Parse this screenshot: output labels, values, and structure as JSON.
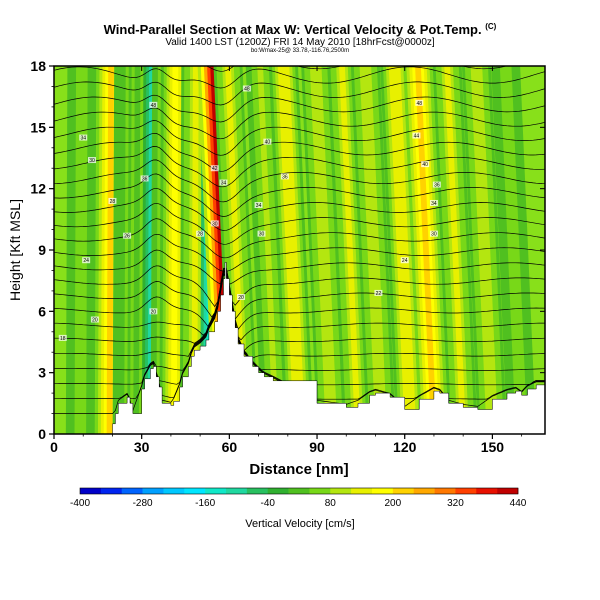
{
  "header": {
    "title": "Wind-Parallel Section at Max W: Vertical Velocity & Pot.Temp.",
    "title_mark": "(C)",
    "subtitle": "Valid 1400 LST (1200Z) FRI 14 May 2010 [18hrFcst@0000z]",
    "subsubtitle": "bo:Wmax-25@ 33.78,-116.76,2500m"
  },
  "colors": {
    "terrain": "#ffffff",
    "contour": "#000000",
    "background_field": "#88e01a"
  },
  "chart_data": {
    "type": "heatmap",
    "xlabel": "Distance [nm]",
    "ylabel": "Height [Kft MSL]",
    "xlim": [
      0,
      168
    ],
    "ylim": [
      0,
      18
    ],
    "x_ticks": [
      0,
      30,
      60,
      90,
      120,
      150
    ],
    "y_ticks": [
      0,
      3,
      6,
      9,
      12,
      15,
      18
    ],
    "colorbar": {
      "label": "Vertical Velocity [cm/s]",
      "tick_labels": [
        -400,
        -280,
        -160,
        -40,
        80,
        200,
        320,
        440
      ],
      "min": -400,
      "max": 440,
      "colors": [
        "#0000c8",
        "#0024f0",
        "#0064ff",
        "#00a0ff",
        "#00c8ff",
        "#00e6ff",
        "#10e8c8",
        "#20d8a0",
        "#28c060",
        "#30b030",
        "#50c020",
        "#78d818",
        "#b4e610",
        "#e8f000",
        "#ffff00",
        "#ffd200",
        "#ffa800",
        "#ff7800",
        "#ff4000",
        "#e81000",
        "#c00000"
      ]
    },
    "terrain_profile": {
      "x": [
        0,
        18,
        20,
        21,
        22,
        25,
        26,
        27,
        30,
        31,
        33,
        34,
        35,
        36,
        37,
        40,
        41,
        43,
        44,
        46,
        47,
        48,
        50,
        52,
        53,
        55,
        56,
        57,
        58,
        58.5,
        59,
        60,
        61,
        62,
        63,
        65,
        68,
        70,
        72,
        75,
        90,
        100,
        104,
        108,
        110,
        115,
        120,
        125,
        130,
        132,
        135,
        140,
        145,
        150,
        155,
        158,
        160,
        162,
        165,
        168
      ],
      "y": [
        0,
        0,
        0.5,
        1.0,
        1.5,
        1.8,
        1.5,
        1.0,
        2.2,
        2.7,
        3.2,
        3.3,
        2.8,
        2.3,
        1.5,
        1.4,
        1.6,
        2.3,
        2.8,
        3.3,
        3.8,
        4.1,
        4.3,
        4.6,
        5.0,
        5.5,
        6.0,
        6.8,
        7.6,
        8.4,
        7.6,
        6.8,
        6.0,
        5.2,
        4.4,
        3.8,
        3.3,
        3.0,
        2.8,
        2.6,
        1.5,
        1.3,
        1.5,
        1.9,
        2.0,
        1.8,
        1.2,
        1.7,
        2.1,
        2.0,
        1.5,
        1.3,
        1.2,
        1.7,
        2.0,
        2.1,
        1.9,
        2.2,
        2.4,
        2.4
      ]
    },
    "vertical_velocity_bands": [
      {
        "x_center": 9,
        "peak": 60
      },
      {
        "x_center": 19,
        "peak": 200
      },
      {
        "x_center": 25,
        "peak": 40
      },
      {
        "x_center": 30,
        "peak": 190
      },
      {
        "x_center": 32,
        "peak": 90
      },
      {
        "x_center": 35,
        "peak": -160
      },
      {
        "x_center": 38,
        "peak": 80
      },
      {
        "x_center": 41,
        "peak": 180
      },
      {
        "x_center": 48,
        "peak": 130
      },
      {
        "x_center": 55,
        "peak": -220
      },
      {
        "x_center": 60,
        "peak": 440
      },
      {
        "x_center": 65,
        "peak": 120
      },
      {
        "x_center": 76,
        "peak": 90
      },
      {
        "x_center": 84,
        "peak": 150
      },
      {
        "x_center": 95,
        "peak": 100
      },
      {
        "x_center": 104,
        "peak": 130
      },
      {
        "x_center": 112,
        "peak": 110
      },
      {
        "x_center": 122,
        "peak": 150
      },
      {
        "x_center": 130,
        "peak": 200
      },
      {
        "x_center": 140,
        "peak": 120
      },
      {
        "x_center": 150,
        "peak": 100
      },
      {
        "x_center": 160,
        "peak": 60
      }
    ],
    "potential_temperature_labels": [
      {
        "x": 10,
        "y": 14.5,
        "text": "34"
      },
      {
        "x": 13,
        "y": 13.4,
        "text": "30"
      },
      {
        "x": 20,
        "y": 11.4,
        "text": "28"
      },
      {
        "x": 25,
        "y": 9.7,
        "text": "26"
      },
      {
        "x": 11,
        "y": 8.5,
        "text": "24"
      },
      {
        "x": 14,
        "y": 5.6,
        "text": "20"
      },
      {
        "x": 3,
        "y": 4.7,
        "text": "18"
      },
      {
        "x": 34,
        "y": 16.1,
        "text": "48"
      },
      {
        "x": 31,
        "y": 12.5,
        "text": "36"
      },
      {
        "x": 50,
        "y": 9.8,
        "text": "28"
      },
      {
        "x": 58,
        "y": 12.3,
        "text": "34"
      },
      {
        "x": 55,
        "y": 10.3,
        "text": "30"
      },
      {
        "x": 55,
        "y": 13.0,
        "text": "42"
      },
      {
        "x": 34,
        "y": 6.0,
        "text": "20"
      },
      {
        "x": 66,
        "y": 16.9,
        "text": "48"
      },
      {
        "x": 73,
        "y": 14.3,
        "text": "40"
      },
      {
        "x": 79,
        "y": 12.6,
        "text": "36"
      },
      {
        "x": 70,
        "y": 11.2,
        "text": "34"
      },
      {
        "x": 71,
        "y": 9.8,
        "text": "30"
      },
      {
        "x": 64,
        "y": 6.7,
        "text": "20"
      },
      {
        "x": 125,
        "y": 16.2,
        "text": "48"
      },
      {
        "x": 124,
        "y": 14.6,
        "text": "44"
      },
      {
        "x": 127,
        "y": 13.2,
        "text": "40"
      },
      {
        "x": 131,
        "y": 12.2,
        "text": "36"
      },
      {
        "x": 130,
        "y": 11.3,
        "text": "34"
      },
      {
        "x": 130,
        "y": 9.8,
        "text": "30"
      },
      {
        "x": 120,
        "y": 8.5,
        "text": "24"
      },
      {
        "x": 111,
        "y": 6.9,
        "text": "22"
      }
    ]
  }
}
